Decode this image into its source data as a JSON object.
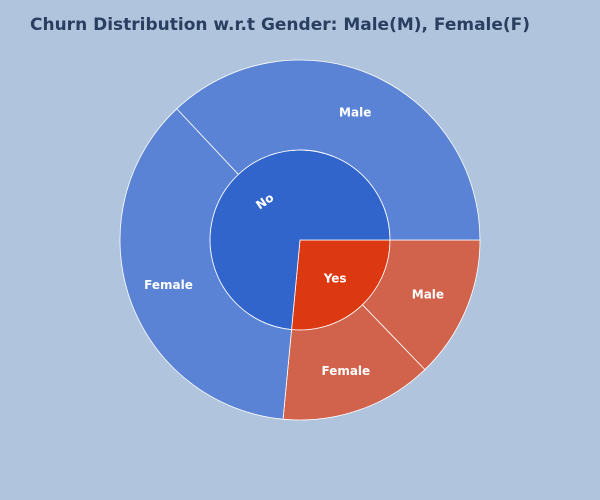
{
  "chart_data": {
    "type": "pie",
    "subtype": "sunburst",
    "title": "Churn Distribution w.r.t Gender: Male(M), Female(F)",
    "inner": [
      {
        "label": "No",
        "value": 73.5,
        "color": "#3165cc"
      },
      {
        "label": "Yes",
        "value": 26.5,
        "color": "#dc3912"
      }
    ],
    "outer": [
      {
        "label": "Male",
        "parent": "No",
        "value": 37.0,
        "color": "#5a83d6"
      },
      {
        "label": "Female",
        "parent": "No",
        "value": 36.5,
        "color": "#5a83d6"
      },
      {
        "label": "Female",
        "parent": "Yes",
        "value": 13.7,
        "color": "#d1624b"
      },
      {
        "label": "Male",
        "parent": "Yes",
        "value": 12.8,
        "color": "#d1624b"
      }
    ]
  },
  "colors": {
    "background": "#b0c4de",
    "title": "#2a3f5f",
    "separator": "#ffffff"
  }
}
